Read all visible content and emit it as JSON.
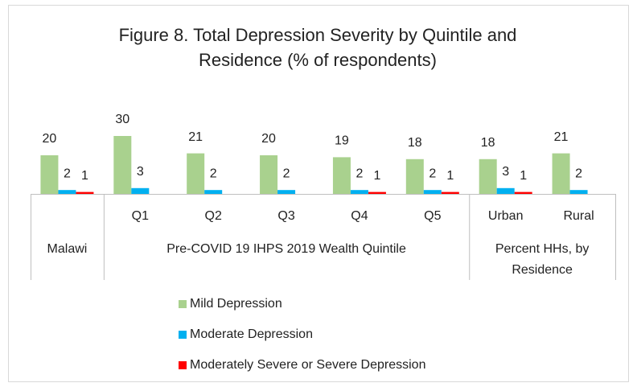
{
  "chart_data": {
    "type": "bar",
    "title": "Figure 8. Total Depression Severity by Quintile and Residence (% of respondents)",
    "groups": [
      {
        "name": "Malawi",
        "categories": [
          null
        ]
      },
      {
        "name": "Pre-COVID 19 IHPS 2019 Wealth Quintile",
        "categories": [
          "Q1",
          "Q2",
          "Q3",
          "Q4",
          "Q5"
        ]
      },
      {
        "name": "Percent HHs, by Residence",
        "categories": [
          "Urban",
          "Rural"
        ]
      }
    ],
    "series": [
      {
        "name": "Mild Depression",
        "color": "#a9d18e",
        "values": [
          20,
          30,
          21,
          20,
          19,
          18,
          18,
          21
        ]
      },
      {
        "name": "Moderate Depression",
        "color": "#00b0f0",
        "values": [
          2,
          3,
          2,
          2,
          2,
          2,
          3,
          2
        ]
      },
      {
        "name": "Moderately Severe or Severe Depression",
        "color": "#ff0000",
        "values": [
          1,
          null,
          null,
          null,
          1,
          1,
          1,
          null
        ]
      }
    ],
    "legend": "bottom"
  }
}
